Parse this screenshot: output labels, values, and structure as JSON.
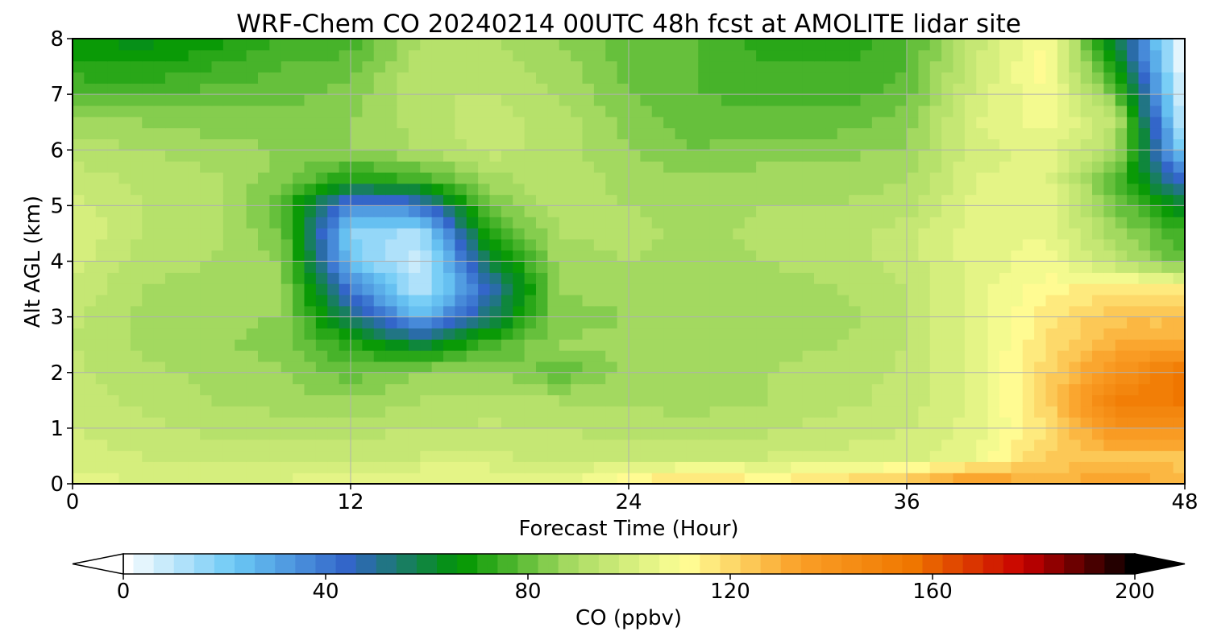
{
  "chart_data": {
    "type": "heatmap",
    "title": "WRF-Chem CO  20240214 00UTC 48h fcst at AMOLITE lidar site",
    "xlabel": "Forecast Time (Hour)",
    "ylabel": "Alt AGL (km)",
    "xlim": [
      0,
      48
    ],
    "ylim": [
      0,
      8
    ],
    "x_ticks": [
      "0",
      "12",
      "24",
      "36",
      "48"
    ],
    "y_ticks": [
      "0",
      "1",
      "2",
      "3",
      "4",
      "5",
      "6",
      "7",
      "8"
    ],
    "grid": true,
    "colorbar": {
      "label": "CO  (ppbv)",
      "range": [
        0,
        200
      ],
      "ticks": [
        "0",
        "40",
        "80",
        "120",
        "160",
        "200"
      ],
      "extend": "both",
      "colormap": [
        "#ffffff",
        "#6ac8f5",
        "#3264c8",
        "#009600",
        "#aadc64",
        "#ffff96",
        "#faa028",
        "#f07800",
        "#c80000",
        "#000000"
      ]
    },
    "field": {
      "x": [
        0,
        3,
        6,
        9,
        12,
        15,
        18,
        21,
        24,
        27,
        30,
        33,
        36,
        39,
        42,
        45,
        48
      ],
      "y": [
        0,
        0.5,
        1,
        1.5,
        2,
        2.5,
        3,
        3.5,
        4,
        4.5,
        5,
        5.5,
        6,
        6.5,
        7,
        7.5,
        8
      ],
      "values": [
        [
          104,
          102,
          101,
          103,
          106,
          108,
          107,
          104,
          115,
          124,
          116,
          122,
          128,
          140,
          128,
          135,
          128
        ],
        [
          100,
          98,
          97,
          96,
          97,
          98,
          99,
          96,
          97,
          96,
          98,
          99,
          100,
          106,
          122,
          126,
          124
        ],
        [
          98,
          95,
          93,
          92,
          92,
          94,
          95,
          94,
          92,
          91,
          93,
          96,
          98,
          104,
          118,
          140,
          140
        ],
        [
          96,
          93,
          90,
          88,
          86,
          90,
          91,
          90,
          89,
          89,
          90,
          93,
          95,
          103,
          121,
          150,
          155
        ],
        [
          95,
          91,
          89,
          87,
          80,
          86,
          88,
          78,
          88,
          87,
          90,
          92,
          95,
          104,
          120,
          140,
          158
        ],
        [
          94,
          89,
          87,
          84,
          72,
          60,
          77,
          86,
          87,
          86,
          89,
          90,
          94,
          104,
          118,
          130,
          130
        ],
        [
          95,
          89,
          87,
          86,
          55,
          25,
          55,
          85,
          86,
          86,
          88,
          88,
          94,
          104,
          116,
          125,
          125
        ],
        [
          97,
          90,
          88,
          86,
          40,
          10,
          45,
          86,
          87,
          86,
          88,
          90,
          94,
          104,
          112,
          118,
          115
        ],
        [
          100,
          92,
          90,
          86,
          22,
          5,
          60,
          88,
          90,
          89,
          90,
          92,
          96,
          104,
          108,
          94,
          78
        ],
        [
          102,
          94,
          92,
          82,
          18,
          12,
          72,
          90,
          91,
          89,
          91,
          92,
          96,
          104,
          106,
          88,
          74
        ],
        [
          100,
          94,
          92,
          78,
          35,
          40,
          82,
          92,
          90,
          88,
          90,
          90,
          92,
          104,
          106,
          82,
          62
        ],
        [
          96,
          93,
          91,
          84,
          70,
          76,
          88,
          94,
          88,
          86,
          88,
          88,
          90,
          102,
          104,
          78,
          40
        ],
        [
          92,
          90,
          88,
          86,
          86,
          90,
          96,
          92,
          86,
          82,
          84,
          85,
          86,
          100,
          104,
          90,
          16
        ],
        [
          88,
          86,
          84,
          84,
          86,
          92,
          96,
          92,
          84,
          80,
          80,
          80,
          84,
          102,
          108,
          94,
          6
        ],
        [
          78,
          76,
          80,
          80,
          84,
          94,
          94,
          90,
          82,
          78,
          76,
          76,
          80,
          100,
          110,
          82,
          2
        ],
        [
          72,
          70,
          74,
          78,
          80,
          92,
          92,
          88,
          80,
          78,
          74,
          74,
          78,
          98,
          112,
          68,
          0
        ],
        [
          66,
          64,
          68,
          74,
          76,
          90,
          90,
          86,
          80,
          78,
          72,
          70,
          76,
          96,
          110,
          60,
          0
        ]
      ]
    }
  }
}
